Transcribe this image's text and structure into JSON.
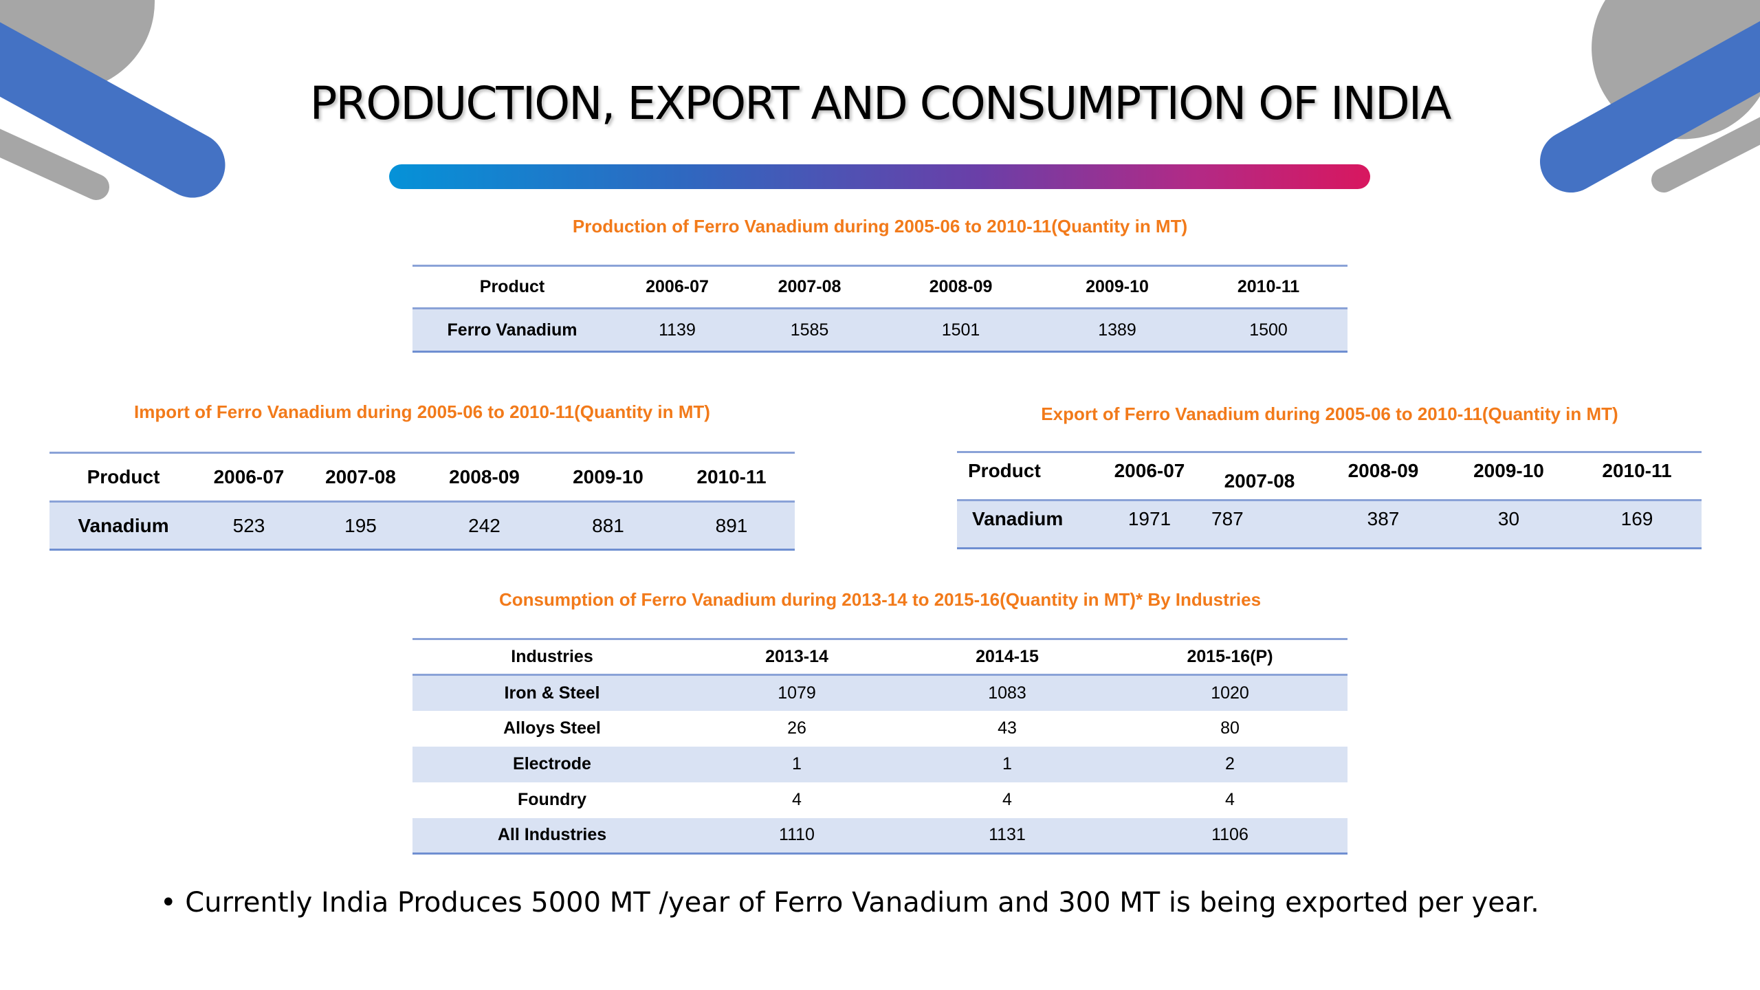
{
  "title": "PRODUCTION, EXPORT AND CONSUMPTION OF INDIA",
  "colors": {
    "accent_orange": "#f27a1a",
    "band_light": "#d9e2f3",
    "rule_blue": "#8aa2d7",
    "deco_blue": "#4472c4",
    "deco_gray": "#a6a6a6"
  },
  "production": {
    "caption": "Production of Ferro Vanadium during 2005-06 to 2010-11(Quantity in MT)",
    "headers": [
      "Product",
      "2006-07",
      "2007-08",
      "2008-09",
      "2009-10",
      "2010-11"
    ],
    "row": [
      "Ferro Vanadium",
      "1139",
      "1585",
      "1501",
      "1389",
      "1500"
    ]
  },
  "import": {
    "caption": "Import of Ferro Vanadium during 2005-06 to 2010-11(Quantity in MT)",
    "headers": [
      "Product",
      "2006-07",
      "2007-08",
      "2008-09",
      "2009-10",
      "2010-11"
    ],
    "row": [
      "Vanadium",
      "523",
      "195",
      "242",
      "881",
      "891"
    ]
  },
  "export": {
    "caption": "Export of Ferro Vanadium during 2005-06 to 2010-11(Quantity in MT)",
    "headers": [
      "Product",
      "2006-07",
      "2007-08",
      "2008-09",
      "2009-10",
      "2010-11"
    ],
    "row": [
      "Vanadium",
      "1971",
      "787",
      "387",
      "30",
      "169"
    ]
  },
  "consumption": {
    "caption": "Consumption of Ferro Vanadium during 2013-14 to 2015-16(Quantity in MT)* By Industries",
    "headers": [
      "Industries",
      "2013-14",
      "2014-15",
      "2015-16(P)"
    ],
    "rows": [
      [
        "Iron & Steel",
        "1079",
        "1083",
        "1020"
      ],
      [
        "Alloys Steel",
        "26",
        "43",
        "80"
      ],
      [
        "Electrode",
        "1",
        "1",
        "2"
      ],
      [
        "Foundry",
        "4",
        "4",
        "4"
      ],
      [
        "All Industries",
        "1110",
        "1131",
        "1106"
      ]
    ]
  },
  "note": "• Currently India Produces 5000 MT /year of Ferro Vanadium and 300 MT is being exported per year."
}
